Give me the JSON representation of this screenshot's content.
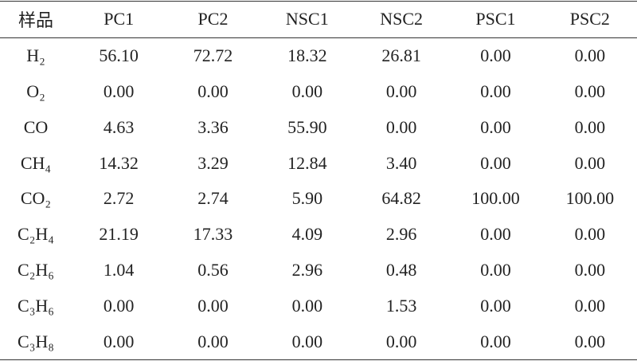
{
  "table": {
    "header": [
      "样品",
      "PC1",
      "PC2",
      "NSC1",
      "NSC2",
      "PSC1",
      "PSC2"
    ],
    "rows": [
      [
        "H₂",
        "56.10",
        "72.72",
        "18.32",
        "26.81",
        "0.00",
        "0.00"
      ],
      [
        "O₂",
        "0.00",
        "0.00",
        "0.00",
        "0.00",
        "0.00",
        "0.00"
      ],
      [
        "CO",
        "4.63",
        "3.36",
        "55.90",
        "0.00",
        "0.00",
        "0.00"
      ],
      [
        "CH₄",
        "14.32",
        "3.29",
        "12.84",
        "3.40",
        "0.00",
        "0.00"
      ],
      [
        "CO₂",
        "2.72",
        "2.74",
        "5.90",
        "64.82",
        "100.00",
        "100.00"
      ],
      [
        "C₂H₄",
        "21.19",
        "17.33",
        "4.09",
        "2.96",
        "0.00",
        "0.00"
      ],
      [
        "C₂H₆",
        "1.04",
        "0.56",
        "2.96",
        "0.48",
        "0.00",
        "0.00"
      ],
      [
        "C₃H₆",
        "0.00",
        "0.00",
        "0.00",
        "1.53",
        "0.00",
        "0.00"
      ],
      [
        "C₃H₈",
        "0.00",
        "0.00",
        "0.00",
        "0.00",
        "0.00",
        "0.00"
      ]
    ]
  }
}
